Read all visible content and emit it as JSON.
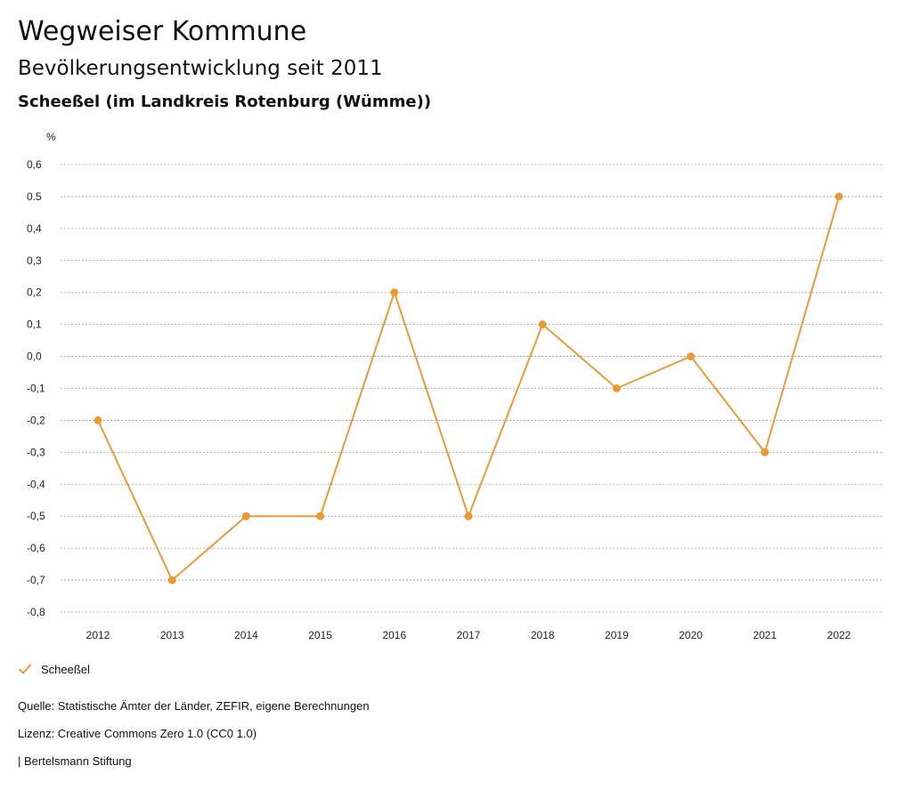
{
  "header": {
    "title": "Wegweiser Kommune",
    "subtitle": "Bevölkerungsentwicklung seit 2011",
    "region": "Scheeßel (im Landkreis Rotenburg (Wümme))"
  },
  "chart_data": {
    "type": "line",
    "ylabel": "%",
    "ylim": [
      -0.8,
      0.6
    ],
    "yticks": [
      "0,6",
      "0.5",
      "0,4",
      "0,3",
      "0,2",
      "0,1",
      "0,0",
      "-0,1",
      "-0,2",
      "-0,3",
      "-0,4",
      "-0,5",
      "-0,6",
      "-0,7",
      "-0,8"
    ],
    "grid": true,
    "legend_position": "bottom-left",
    "categories": [
      "2012",
      "2013",
      "2014",
      "2015",
      "2016",
      "2017",
      "2018",
      "2019",
      "2020",
      "2021",
      "2022"
    ],
    "series": [
      {
        "name": "Scheeßel",
        "color": "#ea9a35",
        "values": [
          -0.2,
          -0.7,
          -0.5,
          -0.5,
          0.2,
          -0.5,
          0.1,
          -0.1,
          0.0,
          -0.3,
          0.5
        ]
      }
    ]
  },
  "legend": {
    "label": "Scheeßel",
    "icon": "check-icon",
    "color": "#ea9a35"
  },
  "footer": {
    "source": "Quelle: Statistische Ämter der Länder, ZEFIR, eigene Berechnungen",
    "license": "Lizenz: Creative Commons Zero 1.0 (CC0 1.0)",
    "org": "| Bertelsmann Stiftung"
  }
}
